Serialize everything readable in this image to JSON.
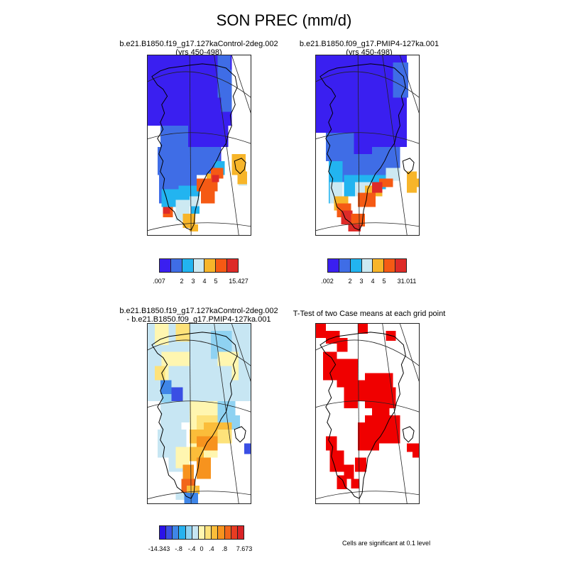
{
  "title": "SON PREC (mm/d)",
  "panels": {
    "p1": {
      "title_l1": "b.e21.B1850.f19_g17.127kaControl-2deg.002",
      "title_l2": "(yrs 450-498)"
    },
    "p2": {
      "title_l1": "b.e21.B1850.f09_g17.PMIP4-127ka.001",
      "title_l2": "(yrs 450-498)"
    },
    "p3": {
      "title_l1": "b.e21.B1850.f19_g17.127kaControl-2deg.002",
      "title_l2": "- b.e21.B1850.f09_g17.PMIP4-127ka.001"
    },
    "p4": {
      "title_l1": "T-Test of two Case means at each grid point",
      "note": "Cells are significant at 0.1 level"
    }
  },
  "colorbars": {
    "c1": {
      "colors": [
        "#3a1ff0",
        "#3f6de6",
        "#22b4f0",
        "#cce9f2",
        "#f7b52a",
        "#f55a14",
        "#de2b28"
      ],
      "labels": [
        ".007",
        "2",
        "3",
        "4",
        "5",
        "15.427"
      ]
    },
    "c2": {
      "colors": [
        "#3a1ff0",
        "#3f6de6",
        "#22b4f0",
        "#cce9f2",
        "#f7b52a",
        "#f55a14",
        "#de2b28"
      ],
      "labels": [
        ".002",
        "2",
        "3",
        "4",
        "5",
        "31.011"
      ]
    },
    "c3": {
      "colors": [
        "#2a12e8",
        "#3a4fe4",
        "#3f86e8",
        "#27b2f0",
        "#8fd2f2",
        "#c7e6f3",
        "#fff6b0",
        "#fde27a",
        "#fbbd3a",
        "#f7931e",
        "#f2661a",
        "#e83c22",
        "#d92326"
      ],
      "labels": [
        "-14.343",
        "-.8",
        "-.4",
        "0",
        ".4",
        ".8",
        "7.673"
      ]
    }
  }
}
